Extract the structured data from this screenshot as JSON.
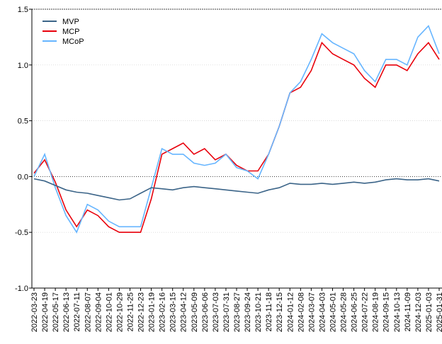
{
  "chart_data": {
    "type": "line",
    "x": [
      "2022-03-23",
      "2022-04-19",
      "2022-05-17",
      "2022-06-13",
      "2022-07-11",
      "2022-08-07",
      "2022-09-04",
      "2022-10-01",
      "2022-10-29",
      "2022-11-25",
      "2022-12-23",
      "2023-01-19",
      "2023-02-16",
      "2023-03-15",
      "2023-04-12",
      "2023-05-09",
      "2023-06-06",
      "2023-07-03",
      "2023-07-31",
      "2023-08-27",
      "2023-09-24",
      "2023-10-21",
      "2023-11-18",
      "2023-12-15",
      "2024-01-12",
      "2024-02-08",
      "2024-03-07",
      "2024-04-03",
      "2024-05-01",
      "2024-05-28",
      "2024-06-25",
      "2024-07-22",
      "2024-08-19",
      "2024-09-15",
      "2024-10-13",
      "2024-11-09",
      "2024-12-03",
      "2025-01-03",
      "2025-01-31"
    ],
    "series": [
      {
        "name": "MVP",
        "color": "#3b6488",
        "values": [
          -0.02,
          -0.04,
          -0.08,
          -0.12,
          -0.14,
          -0.15,
          -0.17,
          -0.19,
          -0.21,
          -0.2,
          -0.15,
          -0.1,
          -0.11,
          -0.12,
          -0.1,
          -0.09,
          -0.1,
          -0.11,
          -0.12,
          -0.13,
          -0.14,
          -0.15,
          -0.12,
          -0.1,
          -0.06,
          -0.07,
          -0.07,
          -0.06,
          -0.07,
          -0.06,
          -0.05,
          -0.06,
          -0.05,
          -0.03,
          -0.02,
          -0.03,
          -0.03,
          -0.02,
          -0.04
        ]
      },
      {
        "name": "MCP",
        "color": "#e8000b",
        "values": [
          0.03,
          0.15,
          -0.05,
          -0.3,
          -0.45,
          -0.3,
          -0.35,
          -0.45,
          -0.5,
          -0.5,
          -0.5,
          -0.2,
          0.2,
          0.25,
          0.3,
          0.2,
          0.25,
          0.15,
          0.2,
          0.1,
          0.05,
          0.05,
          0.2,
          0.45,
          0.75,
          0.8,
          0.95,
          1.2,
          1.1,
          1.05,
          1.0,
          0.88,
          0.8,
          1.0,
          1.0,
          0.95,
          1.1,
          1.2,
          1.05
        ]
      },
      {
        "name": "MCoP",
        "color": "#66b5ff",
        "values": [
          0.0,
          0.2,
          -0.1,
          -0.35,
          -0.5,
          -0.25,
          -0.3,
          -0.4,
          -0.45,
          -0.45,
          -0.45,
          -0.1,
          0.25,
          0.2,
          0.2,
          0.12,
          0.1,
          0.12,
          0.2,
          0.08,
          0.05,
          -0.02,
          0.2,
          0.45,
          0.75,
          0.85,
          1.05,
          1.28,
          1.2,
          1.15,
          1.1,
          0.95,
          0.85,
          1.05,
          1.05,
          1.0,
          1.25,
          1.35,
          1.1
        ]
      }
    ],
    "ylim": [
      -1.0,
      1.5
    ],
    "yticks": [
      {
        "value": -1.0,
        "label": "-1.0"
      },
      {
        "value": -0.5,
        "label": "-0.5"
      },
      {
        "value": 0,
        "label": "0.0"
      },
      {
        "value": 0.5,
        "label": "0.5"
      },
      {
        "value": 1.0,
        "label": "1.0"
      },
      {
        "value": 1.5,
        "label": "1.5"
      }
    ],
    "grid": true,
    "legend": "top-left"
  }
}
